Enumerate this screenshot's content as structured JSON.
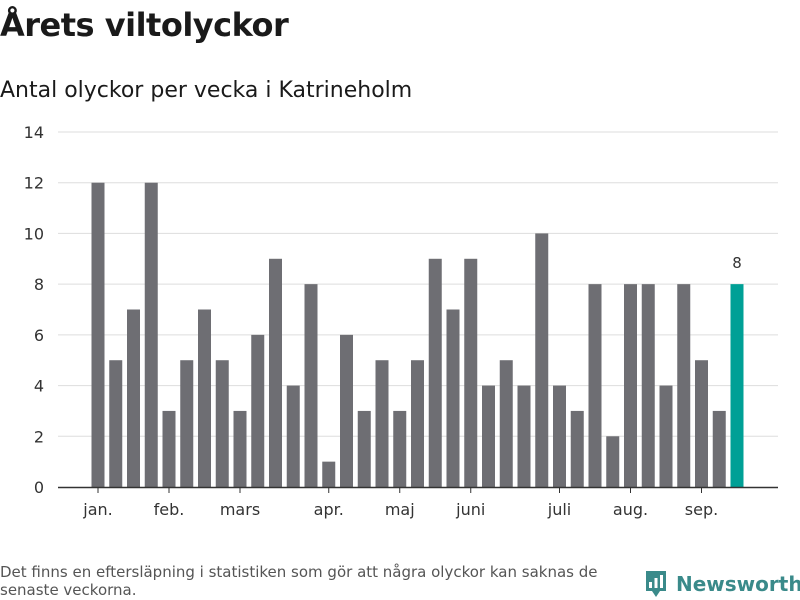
{
  "header": {
    "title": "Årets viltolyckor",
    "subtitle": "Antal olyckor per vecka i Katrineholm"
  },
  "footer": {
    "note": "Det finns en eftersläpning i statistiken som gör att några olyckor kan saknas de senaste veckorna.",
    "brand": "Newsworthy"
  },
  "colors": {
    "bar": "#6e6e73",
    "highlight": "#00a096",
    "grid": "#dddddd",
    "axis": "#333333",
    "text": "#333333",
    "brand": "#3a8a8a"
  },
  "chart_data": {
    "type": "bar",
    "title": "Antal olyckor per vecka i Katrineholm",
    "xlabel": "",
    "ylabel": "",
    "ylim": [
      0,
      14
    ],
    "yticks": [
      0,
      2,
      4,
      6,
      8,
      10,
      12,
      14
    ],
    "grid": true,
    "values": [
      12,
      5,
      7,
      12,
      3,
      5,
      7,
      5,
      3,
      6,
      9,
      4,
      8,
      1,
      6,
      3,
      5,
      3,
      5,
      9,
      7,
      9,
      4,
      5,
      4,
      10,
      4,
      3,
      8,
      2,
      8,
      8,
      4,
      8,
      5,
      3,
      8
    ],
    "highlight_index": 36,
    "highlight_label": "8",
    "month_labels": [
      {
        "label": "jan.",
        "bar_index": 0
      },
      {
        "label": "feb.",
        "bar_index": 4
      },
      {
        "label": "mars",
        "bar_index": 8
      },
      {
        "label": "apr.",
        "bar_index": 13
      },
      {
        "label": "maj",
        "bar_index": 17
      },
      {
        "label": "juni",
        "bar_index": 21
      },
      {
        "label": "juli",
        "bar_index": 26
      },
      {
        "label": "aug.",
        "bar_index": 30
      },
      {
        "label": "sep.",
        "bar_index": 34
      }
    ]
  }
}
